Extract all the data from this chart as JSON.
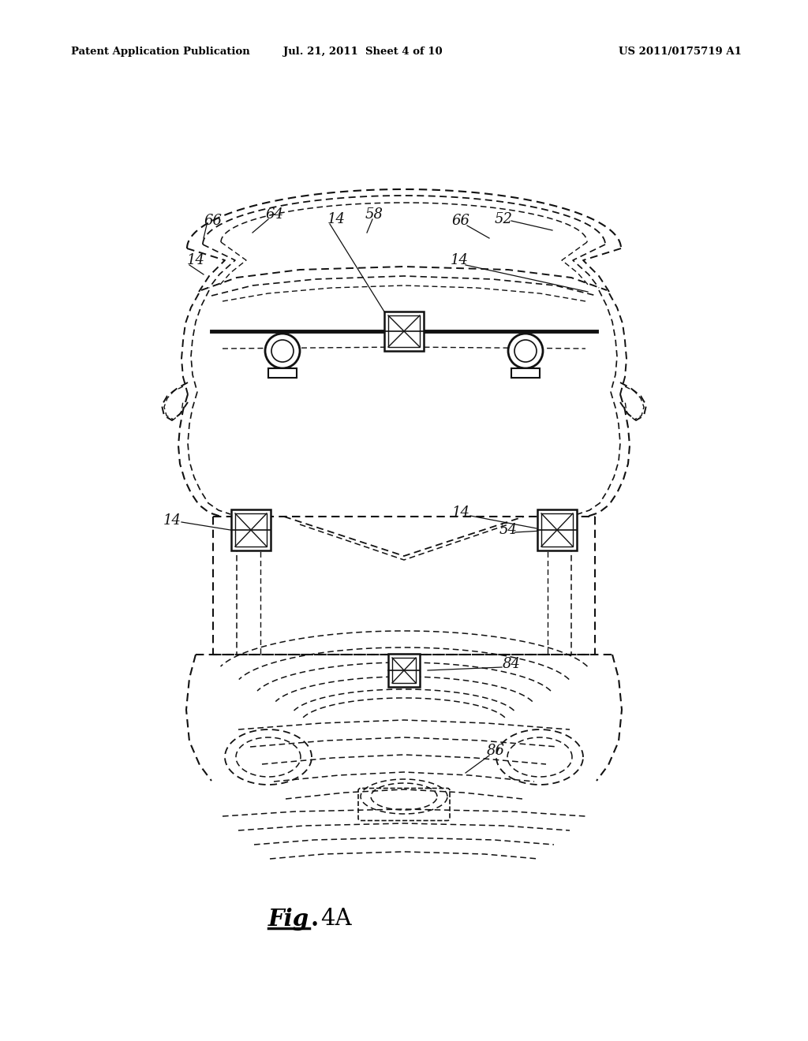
{
  "bg_color": "#ffffff",
  "line_color": "#111111",
  "header_left": "Patent Application Publication",
  "header_mid": "Jul. 21, 2011  Sheet 4 of 10",
  "header_right": "US 2011/0175719 A1"
}
